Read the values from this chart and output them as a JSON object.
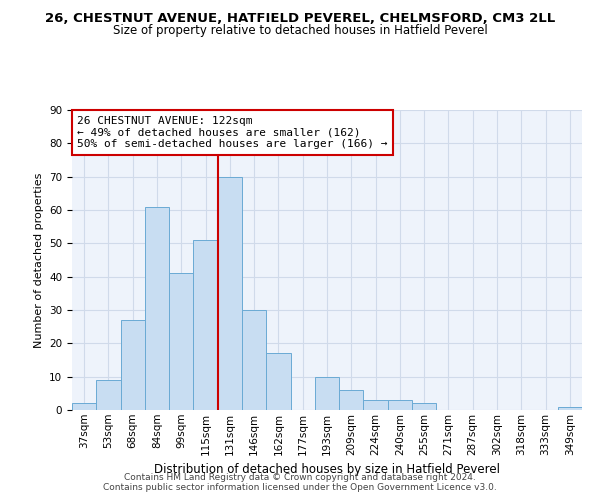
{
  "title": "26, CHESTNUT AVENUE, HATFIELD PEVEREL, CHELMSFORD, CM3 2LL",
  "subtitle": "Size of property relative to detached houses in Hatfield Peverel",
  "xlabel": "Distribution of detached houses by size in Hatfield Peverel",
  "ylabel": "Number of detached properties",
  "bar_labels": [
    "37sqm",
    "53sqm",
    "68sqm",
    "84sqm",
    "99sqm",
    "115sqm",
    "131sqm",
    "146sqm",
    "162sqm",
    "177sqm",
    "193sqm",
    "209sqm",
    "224sqm",
    "240sqm",
    "255sqm",
    "271sqm",
    "287sqm",
    "302sqm",
    "318sqm",
    "333sqm",
    "349sqm"
  ],
  "bar_values": [
    2,
    9,
    27,
    61,
    41,
    51,
    70,
    30,
    17,
    0,
    10,
    6,
    3,
    3,
    2,
    0,
    0,
    0,
    0,
    0,
    1
  ],
  "bar_color": "#c8ddf2",
  "bar_edge_color": "#6aaad4",
  "vline_x": 5.5,
  "vline_color": "#cc0000",
  "ylim": [
    0,
    90
  ],
  "yticks": [
    0,
    10,
    20,
    30,
    40,
    50,
    60,
    70,
    80,
    90
  ],
  "annotation_title": "26 CHESTNUT AVENUE: 122sqm",
  "annotation_line1": "← 49% of detached houses are smaller (162)",
  "annotation_line2": "50% of semi-detached houses are larger (166) →",
  "footer_line1": "Contains HM Land Registry data © Crown copyright and database right 2024.",
  "footer_line2": "Contains public sector information licensed under the Open Government Licence v3.0.",
  "background_color": "#eef3fb",
  "grid_color": "#d0daea",
  "title_fontsize": 9.5,
  "subtitle_fontsize": 8.5,
  "ylabel_fontsize": 8.0,
  "xlabel_fontsize": 8.5,
  "tick_fontsize": 7.5,
  "ann_fontsize": 8.0,
  "footer_fontsize": 6.5
}
